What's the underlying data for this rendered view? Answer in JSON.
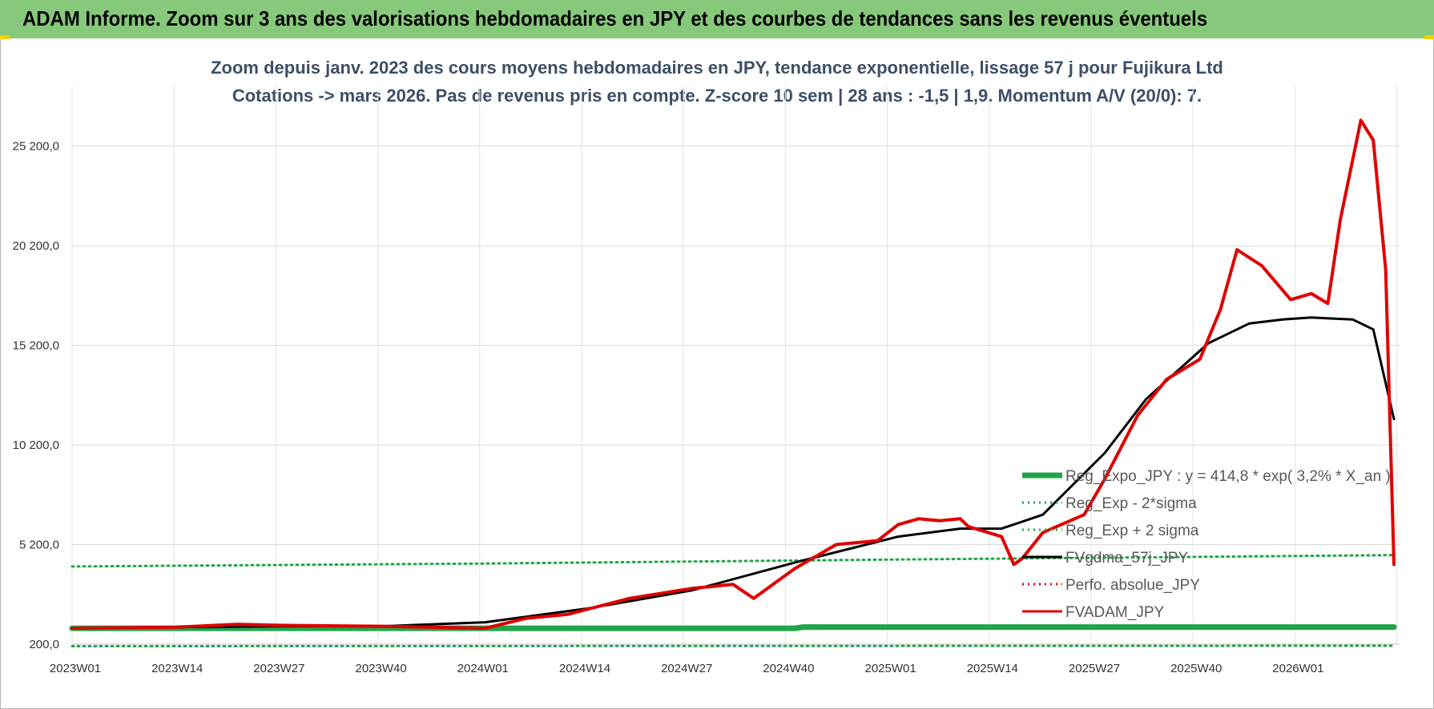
{
  "header": {
    "banner_title": "ADAM Informe. Zoom sur 3 ans des valorisations hebdomadaires en JPY et des courbes de tendances sans les revenus éventuels",
    "banner_color": "#86c97a"
  },
  "chart_data": {
    "type": "line",
    "title_line1": "Zoom depuis janv. 2023 des cours moyens hebdomadaires en JPY, tendance exponentielle, lissage 57 j pour Fujikura Ltd",
    "title_line2": "Cotations -> mars 2026. Pas de revenus pris en compte. Z-score 10 sem | 28 ans : -1,5 | 1,9. Momentum A/V (20/0): 7.",
    "xlabel": "",
    "ylabel": "",
    "ylim": [
      200,
      28200
    ],
    "y_ticks": [
      "200,0",
      "5 200,0",
      "10 200,0",
      "15 200,0",
      "20 200,0",
      "25 200,0"
    ],
    "x_ticks": [
      "2023W01",
      "2023W14",
      "2023W27",
      "2023W40",
      "2024W01",
      "2024W14",
      "2024W27",
      "2024W40",
      "2025W01",
      "2025W14",
      "2025W27",
      "2025W40",
      "2026W01"
    ],
    "grid": true,
    "legend_position": "bottom-right",
    "series": [
      {
        "name": "Reg_Expo_JPY : y = 414,8 * exp( 3,2% *  X_an )",
        "color": "#1fa64a",
        "style": "solid-thick",
        "values": [
          [
            2023.0,
            1000
          ],
          [
            2024.75,
            1000
          ],
          [
            2024.77,
            1060
          ],
          [
            2026.2,
            1060
          ]
        ]
      },
      {
        "name": "Reg_Exp - 2*sigma",
        "color": "#1fa64a",
        "style": "dotted",
        "values": [
          [
            2023.0,
            100
          ],
          [
            2026.2,
            120
          ]
        ]
      },
      {
        "name": "Reg_Exp + 2 sigma",
        "color": "#1fa64a",
        "style": "dotted",
        "values": [
          [
            2023.0,
            4100
          ],
          [
            2024.0,
            4250
          ],
          [
            2025.0,
            4450
          ],
          [
            2026.2,
            4670
          ]
        ]
      },
      {
        "name": "FVgdma_57j_JPY",
        "color": "#000000",
        "style": "solid",
        "values": [
          [
            2023.0,
            1000
          ],
          [
            2023.25,
            1050
          ],
          [
            2023.5,
            1100
          ],
          [
            2023.75,
            1100
          ],
          [
            2024.0,
            1300
          ],
          [
            2024.25,
            2000
          ],
          [
            2024.5,
            2900
          ],
          [
            2024.75,
            4300
          ],
          [
            2025.0,
            5600
          ],
          [
            2025.15,
            6000
          ],
          [
            2025.25,
            6000
          ],
          [
            2025.35,
            6700
          ],
          [
            2025.5,
            9800
          ],
          [
            2025.6,
            12500
          ],
          [
            2025.75,
            15300
          ],
          [
            2025.85,
            16300
          ],
          [
            2025.93,
            16500
          ],
          [
            2026.0,
            16600
          ],
          [
            2026.1,
            16500
          ],
          [
            2026.15,
            16000
          ],
          [
            2026.2,
            11500
          ]
        ]
      },
      {
        "name": "Perfo. absolue_JPY",
        "color": "#e00000",
        "style": "dotted",
        "values": []
      },
      {
        "name": "FVADAM_JPY",
        "color": "#e00000",
        "style": "solid",
        "values": [
          [
            2023.0,
            1000
          ],
          [
            2023.25,
            1050
          ],
          [
            2023.4,
            1200
          ],
          [
            2023.5,
            1150
          ],
          [
            2023.75,
            1100
          ],
          [
            2024.0,
            1000
          ],
          [
            2024.1,
            1500
          ],
          [
            2024.2,
            1700
          ],
          [
            2024.35,
            2500
          ],
          [
            2024.5,
            3000
          ],
          [
            2024.6,
            3200
          ],
          [
            2024.65,
            2500
          ],
          [
            2024.75,
            4000
          ],
          [
            2024.85,
            5200
          ],
          [
            2024.95,
            5400
          ],
          [
            2025.0,
            6200
          ],
          [
            2025.05,
            6500
          ],
          [
            2025.1,
            6400
          ],
          [
            2025.15,
            6500
          ],
          [
            2025.17,
            6100
          ],
          [
            2025.25,
            5600
          ],
          [
            2025.28,
            4200
          ],
          [
            2025.3,
            4500
          ],
          [
            2025.35,
            5800
          ],
          [
            2025.45,
            6700
          ],
          [
            2025.5,
            8500
          ],
          [
            2025.58,
            11700
          ],
          [
            2025.65,
            13500
          ],
          [
            2025.73,
            14500
          ],
          [
            2025.78,
            17000
          ],
          [
            2025.82,
            20000
          ],
          [
            2025.88,
            19200
          ],
          [
            2025.95,
            17500
          ],
          [
            2026.0,
            17800
          ],
          [
            2026.04,
            17300
          ],
          [
            2026.07,
            21500
          ],
          [
            2026.12,
            26500
          ],
          [
            2026.15,
            25500
          ],
          [
            2026.18,
            19000
          ],
          [
            2026.2,
            4200
          ]
        ]
      }
    ]
  }
}
